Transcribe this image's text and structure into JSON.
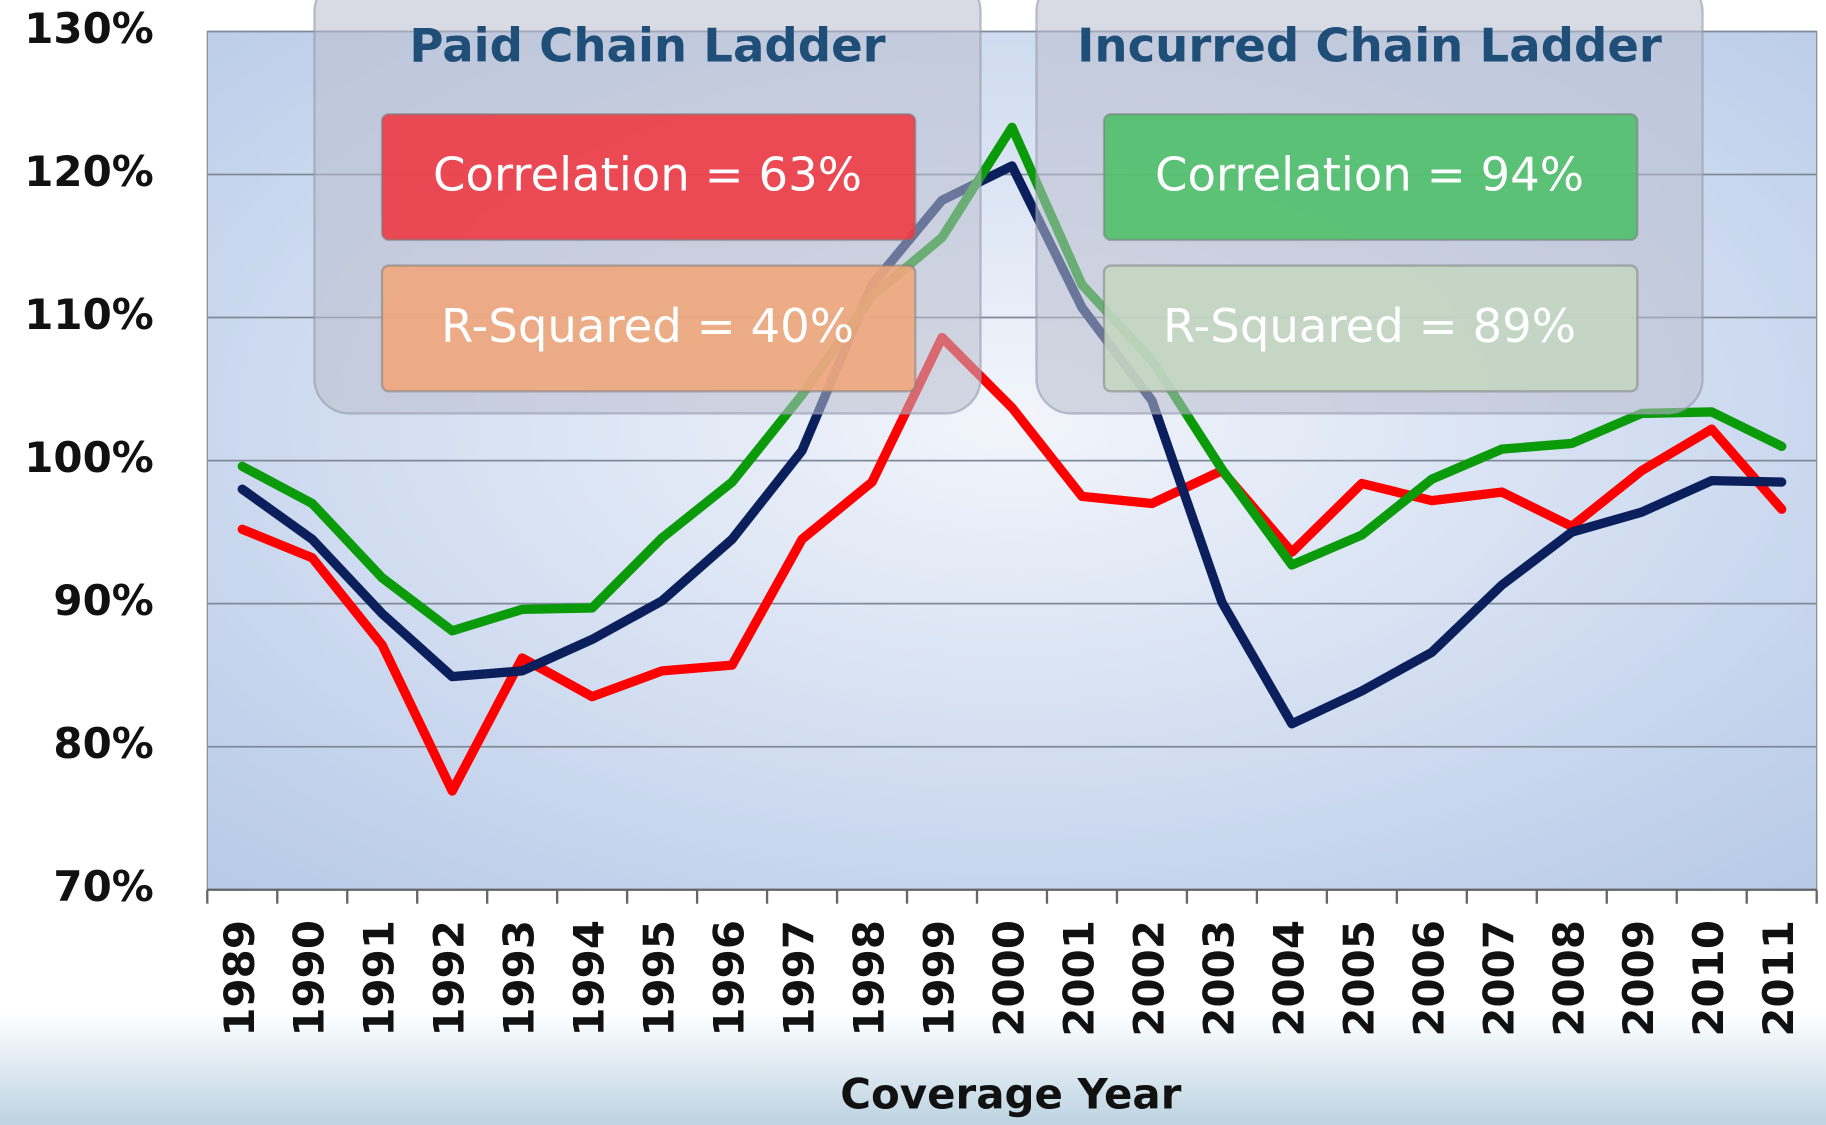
{
  "chart_data": {
    "type": "line",
    "x_label": "Coverage Year",
    "categories": [
      "1989",
      "1990",
      "1991",
      "1992",
      "1993",
      "1994",
      "1995",
      "1996",
      "1997",
      "1998",
      "1999",
      "2000",
      "2001",
      "2002",
      "2003",
      "2004",
      "2005",
      "2006",
      "2007",
      "2008",
      "2009",
      "2010",
      "2011"
    ],
    "series": [
      {
        "color": "#ff0000",
        "values": [
          95.2,
          93.2,
          87.1,
          76.9,
          86.2,
          83.5,
          85.3,
          85.7,
          94.5,
          98.5,
          108.6,
          103.7,
          97.5,
          97.0,
          99.3,
          93.6,
          98.4,
          97.2,
          97.8,
          95.4,
          99.3,
          102.2,
          96.6
        ]
      },
      {
        "color": "#0a1f5c",
        "values": [
          98.0,
          94.5,
          89.3,
          84.9,
          85.3,
          87.5,
          90.2,
          94.5,
          100.7,
          112.3,
          118.2,
          120.6,
          110.7,
          104.2,
          90.1,
          81.6,
          83.9,
          86.6,
          91.3,
          95.0,
          96.4,
          98.6,
          98.5
        ]
      },
      {
        "color": "#0a9a0a",
        "values": [
          99.6,
          97.0,
          91.8,
          88.1,
          89.6,
          89.7,
          94.6,
          98.5,
          104.6,
          111.5,
          115.6,
          123.3,
          112.3,
          107.0,
          99.4,
          92.7,
          94.8,
          98.7,
          100.8,
          101.2,
          103.3,
          103.4,
          101.0
        ]
      }
    ],
    "ylim": [
      70,
      130
    ],
    "yticks": [
      {
        "value": 70,
        "label": "70%"
      },
      {
        "value": 80,
        "label": "80%"
      },
      {
        "value": 90,
        "label": "90%"
      },
      {
        "value": 100,
        "label": "100%"
      },
      {
        "value": 110,
        "label": "110%"
      },
      {
        "value": 120,
        "label": "120%"
      },
      {
        "value": 130,
        "label": "130%"
      }
    ],
    "grid": true,
    "panels": [
      {
        "title": "Paid Chain Ladder",
        "boxes": [
          {
            "text": "Correlation = 63%",
            "color": "#ee3b44"
          },
          {
            "text": "R-Squared = 40%",
            "color": "#f0a77c"
          }
        ]
      },
      {
        "title": "Incurred Chain Ladder",
        "boxes": [
          {
            "text": "Correlation = 94%",
            "color": "#4fc06a"
          },
          {
            "text": "R-Squared = 89%",
            "color": "#c4d6c2"
          }
        ]
      }
    ]
  }
}
